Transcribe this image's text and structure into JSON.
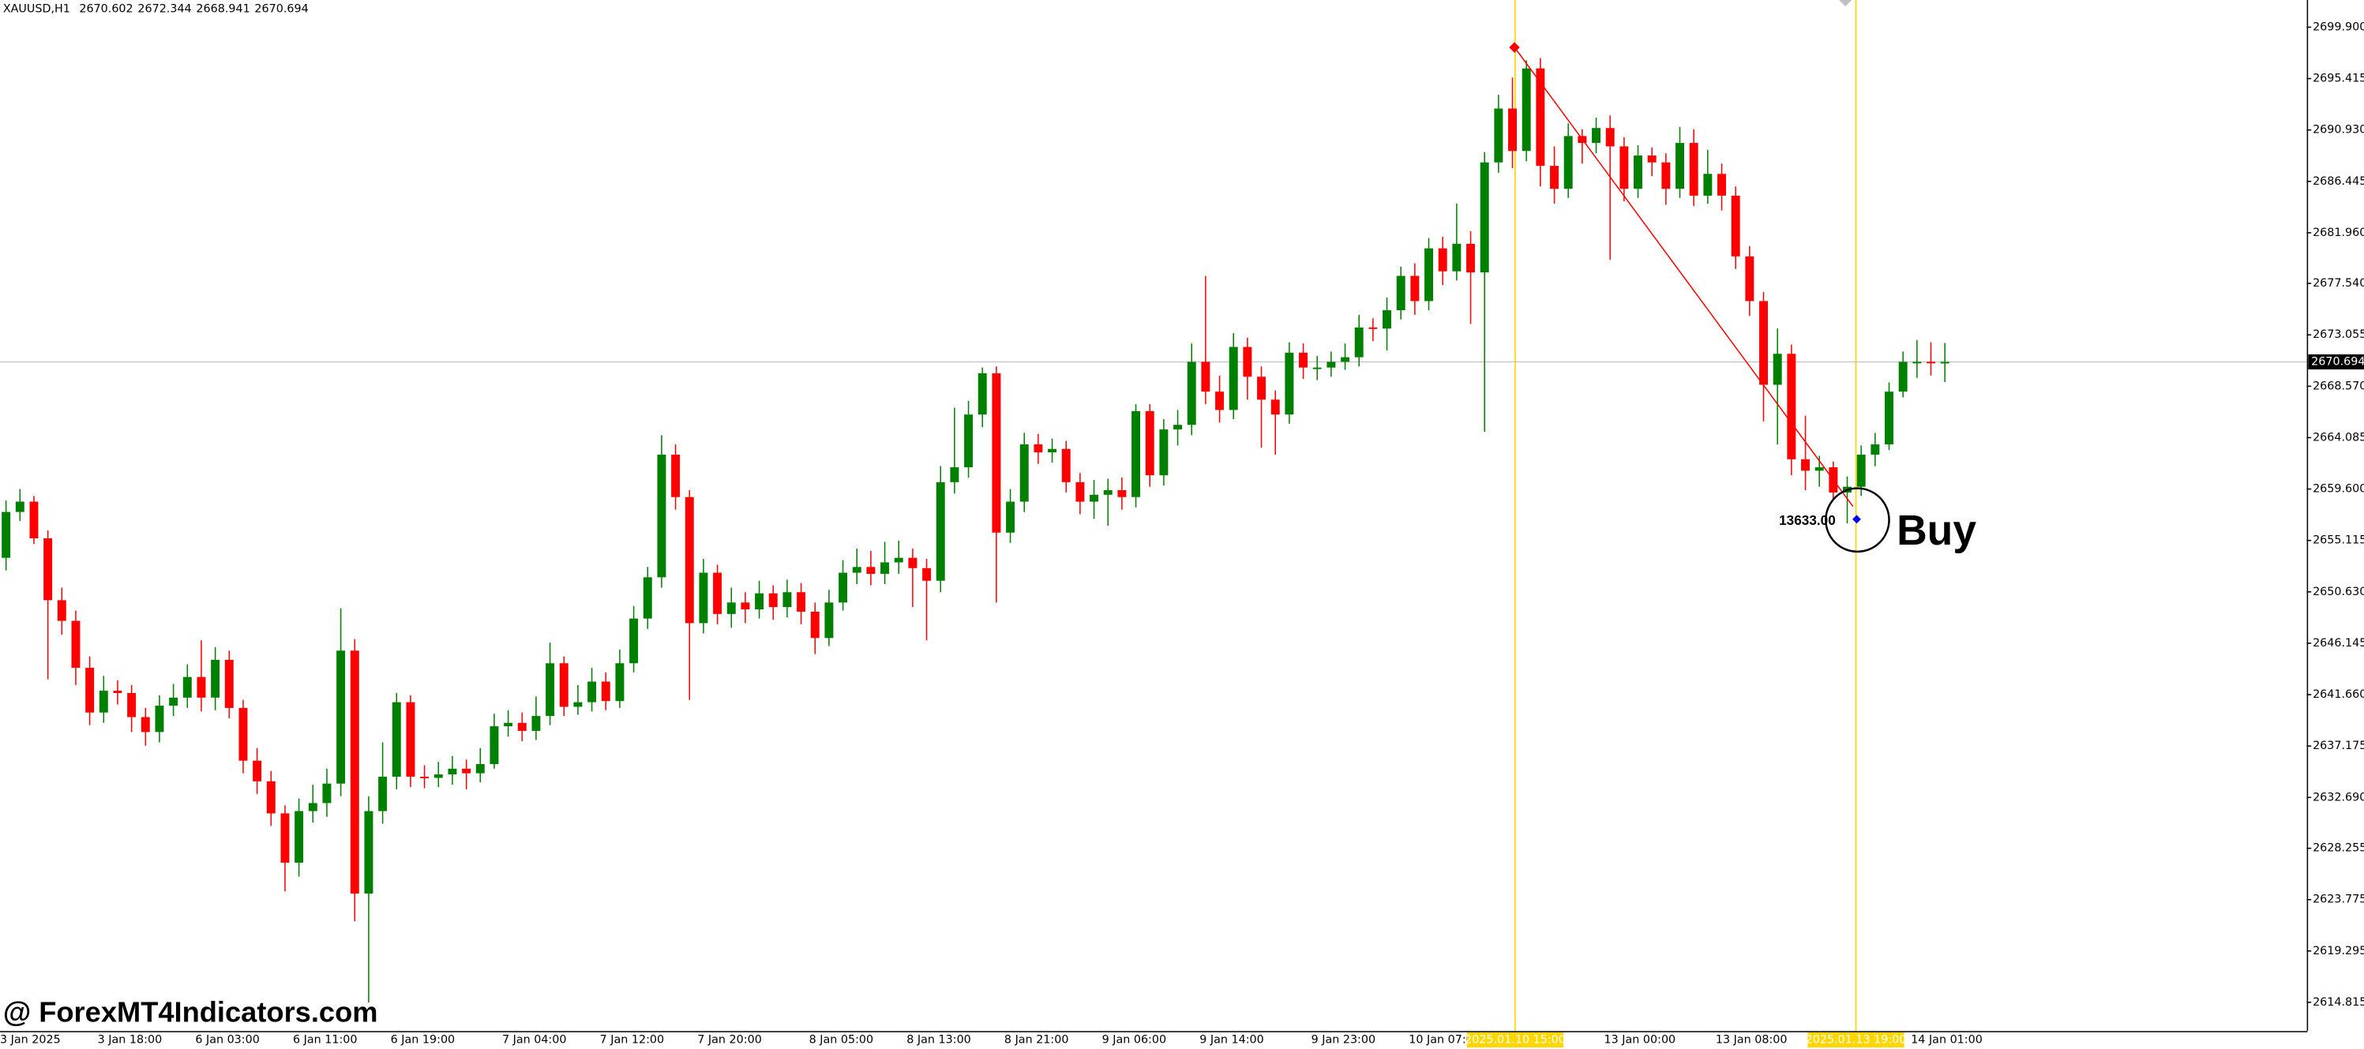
{
  "chart_data": {
    "type": "candlestick",
    "title": "XAUUSD,H1",
    "up_color": "#008000",
    "down_color": "#ff0000",
    "grid": false,
    "price_line": true,
    "ylim": [
      2612.32,
      2702.27
    ],
    "yticks": [
      2614.815,
      2619.295,
      2623.775,
      2628.255,
      {
        "value": 2632.69,
        "label": "2632.690"
      },
      2637.175,
      {
        "value": 2641.66,
        "label": "2641.660"
      },
      2646.145,
      {
        "value": 2650.63,
        "label": "2650.630"
      },
      2655.115,
      {
        "value": 2659.6,
        "label": "2659.600"
      },
      2664.085,
      {
        "value": 2668.57,
        "label": "2668.570"
      },
      2673.055,
      {
        "value": 2677.54,
        "label": "2677.540"
      },
      {
        "value": 2681.96,
        "label": "2681.960"
      },
      2686.445,
      {
        "value": 2690.93,
        "label": "2690.930"
      },
      2695.415,
      {
        "value": 2699.9,
        "label": "2699.900"
      }
    ],
    "categories": [
      "3 Jan 2025",
      null,
      null,
      null,
      null,
      null,
      null,
      "3 Jan 18:00",
      null,
      null,
      null,
      null,
      null,
      null,
      "6 Jan 03:00",
      null,
      null,
      null,
      null,
      null,
      null,
      "6 Jan 11:00",
      null,
      null,
      null,
      null,
      null,
      null,
      "6 Jan 19:00",
      null,
      null,
      null,
      null,
      null,
      null,
      null,
      "7 Jan 04:00",
      null,
      null,
      null,
      null,
      null,
      null,
      "7 Jan 12:00",
      null,
      null,
      null,
      null,
      null,
      null,
      "7 Jan 20:00",
      null,
      null,
      null,
      null,
      null,
      null,
      null,
      "8 Jan 05:00",
      null,
      null,
      null,
      null,
      null,
      null,
      "8 Jan 13:00",
      null,
      null,
      null,
      null,
      null,
      null,
      "8 Jan 21:00",
      null,
      null,
      null,
      null,
      null,
      null,
      "9 Jan 06:00",
      null,
      null,
      null,
      null,
      null,
      null,
      "9 Jan 14:00",
      null,
      null,
      null,
      null,
      null,
      null,
      null,
      "9 Jan 23:00",
      null,
      null,
      null,
      null,
      null,
      null,
      "10 Jan 07:00",
      null,
      null,
      null,
      null,
      null,
      null,
      null,
      null,
      null,
      null,
      null,
      null,
      null,
      "13 Jan 00:00",
      null,
      null,
      null,
      null,
      null,
      null,
      null,
      "13 Jan 08:00",
      null,
      null,
      null,
      null,
      null,
      null,
      null,
      null,
      null,
      null,
      null,
      null,
      null,
      "14 Jan 01:00",
      null,
      null
    ],
    "open": [
      2653.6,
      2657.6,
      2658.5,
      2655.3,
      2649.9,
      2648.1,
      2644.0,
      2640.1,
      2642.0,
      2641.8,
      2639.7,
      2638.4,
      2640.7,
      2641.4,
      2643.2,
      2641.4,
      2644.7,
      2640.5,
      2635.9,
      2634.1,
      2631.3,
      2627.0,
      2631.5,
      2632.2,
      2633.9,
      2645.5,
      2624.3,
      2631.5,
      2634.5,
      2641.0,
      2634.5,
      2634.4,
      2634.7,
      2635.2,
      2634.8,
      2635.6,
      2638.9,
      2639.2,
      2638.5,
      2639.8,
      2644.4,
      2640.6,
      2641.0,
      2642.8,
      2641.1,
      2644.4,
      2648.3,
      2651.9,
      2662.6,
      2658.9,
      2647.9,
      2652.3,
      2648.7,
      2649.7,
      2649.1,
      2650.5,
      2649.3,
      2650.6,
      2648.9,
      2646.6,
      2649.7,
      2652.3,
      2652.8,
      2652.2,
      2653.2,
      2653.6,
      2652.7,
      2651.6,
      2660.2,
      2661.5,
      2666.1,
      2669.7,
      2655.8,
      2658.5,
      2663.5,
      2662.8,
      2663.1,
      2660.2,
      2658.5,
      2659.1,
      2659.5,
      2658.9,
      2666.4,
      2660.8,
      2664.8,
      2665.2,
      2670.7,
      2668.1,
      2666.5,
      2672.0,
      2669.4,
      2667.4,
      2666.1,
      2671.5,
      2670.2,
      2670.2,
      2670.7,
      2671.1,
      2673.7,
      2673.6,
      2675.2,
      2678.2,
      2676.0,
      2680.6,
      2678.6,
      2681.0,
      2678.5,
      2688.1,
      2692.8,
      2689.1,
      2696.3,
      2687.8,
      2685.8,
      2690.4,
      2689.8,
      2691.1,
      2689.5,
      2685.8,
      2688.7,
      2688.1,
      2685.8,
      2689.8,
      2685.2,
      2687.1,
      2685.2,
      2679.9,
      2676.0,
      2668.7,
      2671.4,
      2662.2,
      2661.2,
      2661.5,
      2659.3,
      2659.8,
      2662.6,
      2663.5,
      2668.1,
      2670.7,
      2670.7,
      2670.602
    ],
    "high": [
      2658.6,
      2659.6,
      2659.0,
      2656.0,
      2651.0,
      2649.0,
      2645.0,
      2643.3,
      2642.9,
      2642.5,
      2640.5,
      2641.6,
      2642.6,
      2644.3,
      2646.4,
      2645.8,
      2645.5,
      2641.2,
      2637.0,
      2635.0,
      2632.0,
      2632.6,
      2633.8,
      2635.2,
      2649.2,
      2646.5,
      2632.8,
      2637.5,
      2641.8,
      2641.6,
      2635.5,
      2635.8,
      2636.3,
      2636.0,
      2637.0,
      2640.0,
      2640.3,
      2640.1,
      2641.5,
      2646.2,
      2645.0,
      2642.5,
      2644.0,
      2643.6,
      2645.6,
      2649.4,
      2652.8,
      2664.3,
      2663.5,
      2659.5,
      2653.5,
      2653.0,
      2651.0,
      2650.6,
      2651.6,
      2651.2,
      2651.7,
      2651.4,
      2649.7,
      2650.8,
      2653.4,
      2654.4,
      2654.2,
      2655.0,
      2655.1,
      2654.4,
      2653.5,
      2661.6,
      2666.7,
      2667.3,
      2670.2,
      2670.3,
      2659.6,
      2664.5,
      2664.4,
      2664.0,
      2663.8,
      2661.0,
      2660.4,
      2660.5,
      2660.6,
      2667.0,
      2667.0,
      2665.7,
      2666.5,
      2672.3,
      2678.2,
      2669.5,
      2673.2,
      2672.8,
      2670.3,
      2668.2,
      2672.4,
      2672.3,
      2671.2,
      2671.6,
      2672.3,
      2674.8,
      2674.5,
      2676.3,
      2679.0,
      2679.3,
      2681.5,
      2681.6,
      2684.5,
      2682.1,
      2689.0,
      2694.0,
      2695.5,
      2697.0,
      2697.2,
      2689.5,
      2691.5,
      2691.0,
      2692.0,
      2692.2,
      2690.3,
      2689.6,
      2689.4,
      2688.9,
      2691.2,
      2691.0,
      2689.2,
      2688.0,
      2686.0,
      2680.8,
      2676.8,
      2673.6,
      2672.2,
      2666.0,
      2662.5,
      2662.0,
      2660.7,
      2663.4,
      2664.5,
      2668.9,
      2671.6,
      2672.6,
      2672.4,
      2672.344
    ],
    "low": [
      2652.5,
      2656.8,
      2654.8,
      2643.0,
      2646.9,
      2642.5,
      2639.0,
      2639.2,
      2640.8,
      2638.4,
      2637.2,
      2637.5,
      2639.8,
      2640.5,
      2640.2,
      2640.3,
      2639.6,
      2634.8,
      2633.0,
      2630.2,
      2624.5,
      2625.8,
      2630.5,
      2631.0,
      2632.8,
      2621.9,
      2614.8,
      2630.4,
      2633.4,
      2633.6,
      2633.5,
      2633.6,
      2633.8,
      2633.4,
      2634.0,
      2635.2,
      2638.0,
      2637.6,
      2637.7,
      2639.0,
      2639.8,
      2639.9,
      2640.2,
      2640.3,
      2640.5,
      2643.6,
      2647.4,
      2651.0,
      2657.8,
      2641.2,
      2647.0,
      2647.8,
      2647.5,
      2647.9,
      2648.3,
      2648.2,
      2648.4,
      2647.8,
      2645.2,
      2645.9,
      2649.0,
      2651.3,
      2651.2,
      2651.3,
      2652.2,
      2649.3,
      2646.4,
      2650.6,
      2659.2,
      2660.6,
      2665.0,
      2649.7,
      2654.9,
      2657.6,
      2661.8,
      2661.9,
      2659.3,
      2657.4,
      2657.0,
      2656.4,
      2657.8,
      2658.0,
      2659.8,
      2659.9,
      2663.4,
      2664.3,
      2667.0,
      2665.4,
      2665.7,
      2667.4,
      2663.2,
      2662.6,
      2665.3,
      2669.2,
      2669.1,
      2669.4,
      2670.0,
      2670.3,
      2672.5,
      2671.7,
      2674.4,
      2674.8,
      2675.2,
      2677.4,
      2677.8,
      2674.0,
      2664.6,
      2687.2,
      2687.6,
      2688.2,
      2686.0,
      2684.5,
      2685.0,
      2688.0,
      2688.9,
      2679.6,
      2684.7,
      2685.0,
      2686.9,
      2684.4,
      2685.0,
      2684.3,
      2684.5,
      2683.9,
      2678.8,
      2674.7,
      2665.5,
      2663.5,
      2660.8,
      2659.5,
      2659.8,
      2658.6,
      2656.6,
      2659.0,
      2661.6,
      2663.0,
      2667.6,
      2669.3,
      2669.5,
      2668.941
    ],
    "close": [
      2657.6,
      2658.5,
      2655.3,
      2649.9,
      2648.1,
      2644.0,
      2640.1,
      2642.0,
      2641.8,
      2639.7,
      2638.4,
      2640.7,
      2641.4,
      2643.2,
      2641.4,
      2644.7,
      2640.5,
      2635.9,
      2634.1,
      2631.3,
      2627.0,
      2631.5,
      2632.2,
      2633.9,
      2645.5,
      2624.3,
      2631.5,
      2634.5,
      2641.0,
      2634.5,
      2634.4,
      2634.7,
      2635.2,
      2634.8,
      2635.6,
      2638.9,
      2639.2,
      2638.5,
      2639.8,
      2644.4,
      2640.6,
      2641.0,
      2642.8,
      2641.1,
      2644.4,
      2648.3,
      2651.9,
      2662.6,
      2658.9,
      2647.9,
      2652.3,
      2648.7,
      2649.7,
      2649.1,
      2650.5,
      2649.3,
      2650.6,
      2648.9,
      2646.6,
      2649.7,
      2652.3,
      2652.8,
      2652.2,
      2653.2,
      2653.6,
      2652.7,
      2651.6,
      2660.2,
      2661.5,
      2666.1,
      2669.7,
      2655.8,
      2658.5,
      2663.5,
      2662.8,
      2663.1,
      2660.2,
      2658.5,
      2659.1,
      2659.5,
      2658.9,
      2666.4,
      2660.8,
      2664.8,
      2665.2,
      2670.7,
      2668.1,
      2666.5,
      2672.0,
      2669.4,
      2667.4,
      2666.1,
      2671.5,
      2670.2,
      2670.2,
      2670.7,
      2671.1,
      2673.7,
      2673.6,
      2675.2,
      2678.2,
      2676.0,
      2680.6,
      2678.6,
      2681.0,
      2678.5,
      2688.1,
      2692.8,
      2689.1,
      2696.3,
      2687.8,
      2685.8,
      2690.4,
      2689.8,
      2691.1,
      2689.5,
      2685.8,
      2688.7,
      2688.1,
      2685.8,
      2689.8,
      2685.2,
      2687.1,
      2685.2,
      2679.9,
      2676.0,
      2668.7,
      2671.4,
      2662.2,
      2661.2,
      2661.5,
      2659.3,
      2659.8,
      2662.6,
      2663.5,
      2668.1,
      2670.7,
      2670.7,
      2670.6,
      2670.694
    ],
    "signal_times": [
      "2025.01.10 15:00",
      "2025.01.13 19:00"
    ],
    "signal_value": "13633.00",
    "signal_label": "Buy",
    "watermark": "@ ForexMT4Indicators.com"
  }
}
